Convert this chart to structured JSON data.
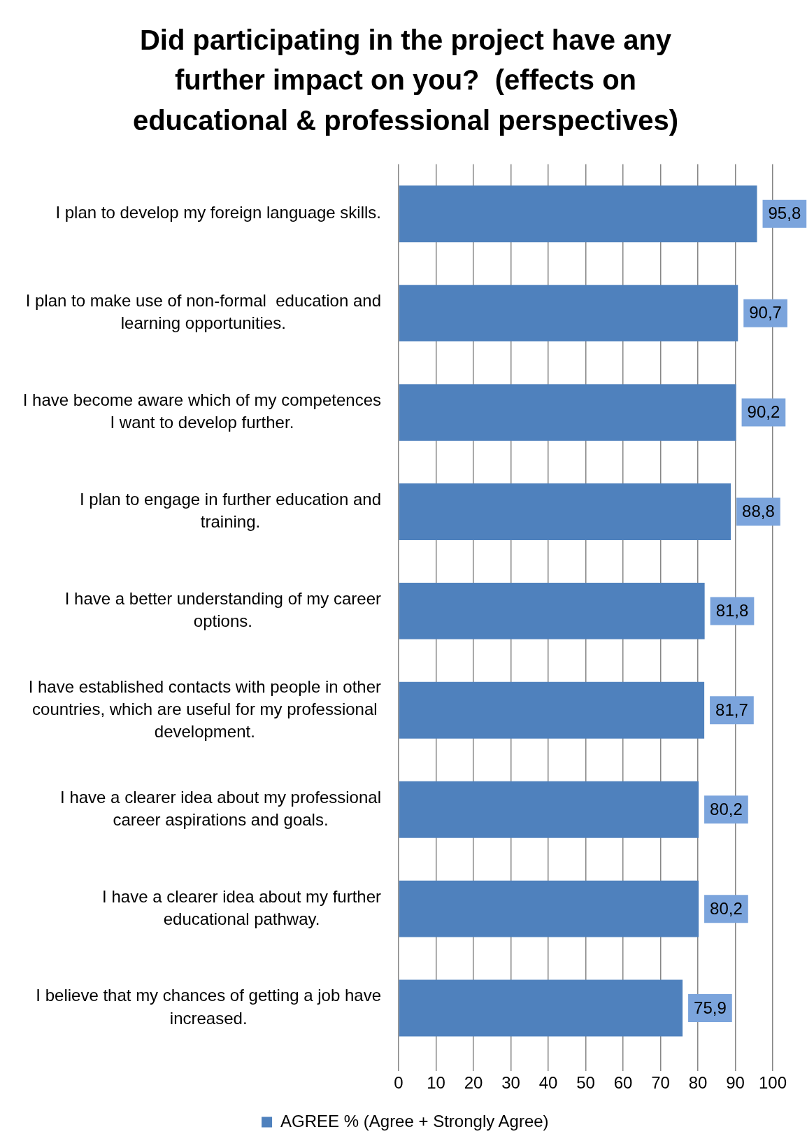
{
  "chart_data": {
    "type": "bar",
    "orientation": "horizontal",
    "title": "Did participating in the project have any further impact on you?  (effects on educational & professional perspectives)",
    "categories": [
      "I plan to develop my foreign language skills.",
      "I plan to make use of non-formal  education and learning opportunities.",
      "I have become aware which of my competences I want to develop further.",
      "I plan to engage in further education and training.",
      "I have a better understanding of my career options.",
      "I have established contacts with people in other countries, which are useful for my professional development.",
      "I have a clearer idea about my professional career aspirations and goals.",
      "I have a clearer idea about my further educational pathway.",
      "I believe that my chances of getting a job have increased."
    ],
    "series": [
      {
        "name": "AGREE % (Agree + Strongly Agree)",
        "color": "#4f81bd",
        "values": [
          95.8,
          90.7,
          90.2,
          88.8,
          81.8,
          81.7,
          80.2,
          80.2,
          75.9
        ],
        "value_labels": [
          "95,8",
          "90,7",
          "90,2",
          "88,8",
          "81,8",
          "81,7",
          "80,2",
          "80,2",
          "75,9"
        ]
      }
    ],
    "xlim": [
      0,
      100
    ],
    "xticks": [
      0,
      10,
      20,
      30,
      40,
      50,
      60,
      70,
      80,
      90,
      100
    ],
    "grid": "x",
    "legend": "bottom"
  }
}
